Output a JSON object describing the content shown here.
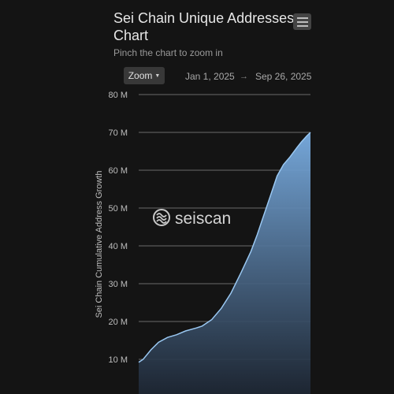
{
  "header": {
    "title": "Sei Chain Unique Addresses Chart",
    "subtitle": "Pinch the chart to zoom in"
  },
  "controls": {
    "zoom_label": "Zoom",
    "date_from": "Jan 1, 2025",
    "date_arrow": "→",
    "date_to": "Sep 26, 2025"
  },
  "watermark": "seiscan",
  "colors": {
    "line": "#9ac8f2",
    "area_top": "#7aaee3",
    "area_bottom": "#1d2633",
    "grid": "#6a6a6a",
    "text": "#bdbdbd"
  },
  "chart_data": {
    "type": "area",
    "title": "Sei Chain Unique Addresses Chart",
    "ylabel": "Sei Chain Cumulative Address Growth",
    "ylim": [
      0,
      80
    ],
    "y_unit": "M",
    "yticks": [
      "10 M",
      "20 M",
      "30 M",
      "40 M",
      "50 M",
      "60 M",
      "70 M",
      "80 M"
    ],
    "ytick_values": [
      10,
      20,
      30,
      40,
      50,
      60,
      70,
      80
    ],
    "xlim": [
      "2025-01-01",
      "2025-09-26"
    ],
    "grid": true,
    "series": [
      {
        "x": [
          "2025-01-01",
          "2025-01-08",
          "2025-01-20",
          "2025-02-01",
          "2025-02-15",
          "2025-03-01",
          "2025-03-15",
          "2025-04-01",
          "2025-04-10",
          "2025-04-25",
          "2025-05-10",
          "2025-05-25",
          "2025-06-10",
          "2025-06-25",
          "2025-07-05",
          "2025-07-15",
          "2025-07-25",
          "2025-08-05",
          "2025-08-15",
          "2025-08-25",
          "2025-09-05",
          "2025-09-12",
          "2025-09-20",
          "2025-09-26"
        ],
        "values": [
          9.2,
          10.0,
          12.5,
          14.5,
          15.8,
          16.5,
          17.5,
          18.3,
          18.8,
          20.5,
          23.5,
          27.5,
          33.0,
          38.5,
          43.0,
          48.0,
          53.0,
          58.5,
          61.5,
          63.5,
          66.0,
          67.5,
          69.0,
          70.0
        ]
      }
    ]
  }
}
